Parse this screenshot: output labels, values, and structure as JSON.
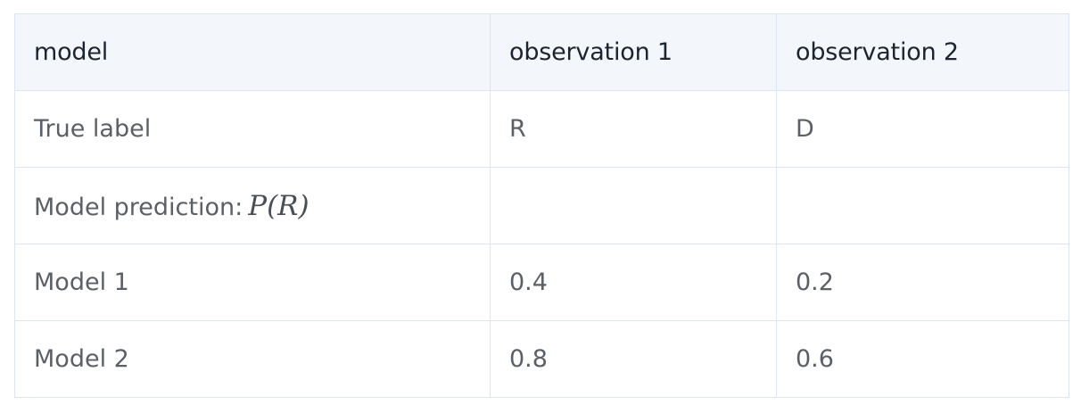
{
  "table": {
    "headers": [
      "model",
      "observation 1",
      "observation 2"
    ],
    "rows": [
      {
        "label": "True label",
        "obs1": "R",
        "obs2": "D"
      },
      {
        "label": "Model prediction:",
        "label_math": "P(R)",
        "obs1": "",
        "obs2": ""
      },
      {
        "label": "Model 1",
        "obs1": "0.4",
        "obs2": "0.2"
      },
      {
        "label": "Model 2",
        "obs1": "0.8",
        "obs2": "0.6"
      }
    ]
  }
}
